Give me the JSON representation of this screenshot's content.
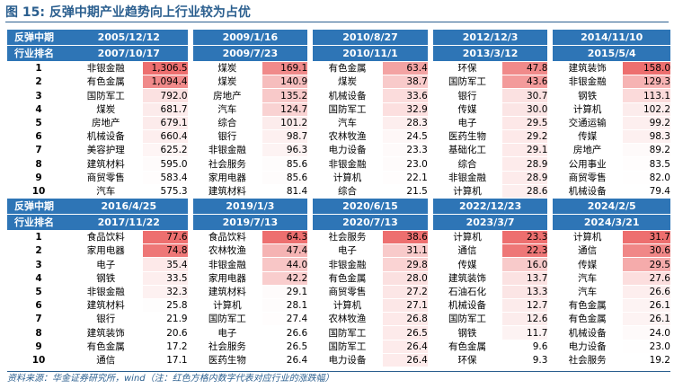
{
  "figure": {
    "label": "图 15:",
    "title": "反弹中期产业趋势向上行业较为占优"
  },
  "source": "资料来源：华金证券研究所，wind（注：红色方格内数字代表对应行业的涨跌幅）",
  "tables": [
    {
      "header": {
        "row1_label": "反弹中期",
        "row2_label": "行业排名",
        "periods": [
          {
            "start": "2005/12/12",
            "end": "2007/10/17"
          },
          {
            "start": "2009/1/16",
            "end": "2009/7/23"
          },
          {
            "start": "2010/8/27",
            "end": "2010/11/1"
          },
          {
            "start": "2012/12/3",
            "end": "2013/3/12"
          },
          {
            "start": "2014/11/10",
            "end": "2015/5/4"
          }
        ]
      },
      "rows": [
        {
          "rank": "1",
          "cells": [
            {
              "name": "非银金融",
              "value": "1,306.5",
              "color": "#ed6f6f"
            },
            {
              "name": "煤炭",
              "value": "169.1",
              "color": "#f08a8a"
            },
            {
              "name": "有色金属",
              "value": "63.4",
              "color": "#f3a3a3"
            },
            {
              "name": "环保",
              "value": "47.8",
              "color": "#f08a8a"
            },
            {
              "name": "建筑装饰",
              "value": "158.0",
              "color": "#ed6f6f"
            }
          ]
        },
        {
          "rank": "2",
          "cells": [
            {
              "name": "有色金属",
              "value": "1,094.4",
              "color": "#f08a8a"
            },
            {
              "name": "煤炭",
              "value": "140.9",
              "color": "#f6bdbd"
            },
            {
              "name": "煤炭",
              "value": "38.7",
              "color": "#f8caca"
            },
            {
              "name": "国防军工",
              "value": "43.6",
              "color": "#f39b9b"
            },
            {
              "name": "非银金融",
              "value": "129.3",
              "color": "#f6b3b3"
            }
          ]
        },
        {
          "rank": "3",
          "cells": [
            {
              "name": "国防军工",
              "value": "792.0",
              "color": "#fbe1e1"
            },
            {
              "name": "房地产",
              "value": "135.2",
              "color": "#f8c9c9"
            },
            {
              "name": "机械设备",
              "value": "33.6",
              "color": "#fbdcdc"
            },
            {
              "name": "银行",
              "value": "30.7",
              "color": "#fbe1e1"
            },
            {
              "name": "钢铁",
              "value": "113.1",
              "color": "#fbdada"
            }
          ]
        },
        {
          "rank": "4",
          "cells": [
            {
              "name": "煤炭",
              "value": "681.7",
              "color": "#fcebeb"
            },
            {
              "name": "汽车",
              "value": "124.7",
              "color": "#f9d2d2"
            },
            {
              "name": "国防军工",
              "value": "32.9",
              "color": "#fcdfdf"
            },
            {
              "name": "传媒",
              "value": "30.0",
              "color": "#fbe5e5"
            },
            {
              "name": "计算机",
              "value": "102.2",
              "color": "#fcecec"
            }
          ]
        },
        {
          "rank": "5",
          "cells": [
            {
              "name": "房地产",
              "value": "679.1",
              "color": "#fcebeb"
            },
            {
              "name": "综合",
              "value": "101.2",
              "color": "#fcecec"
            },
            {
              "name": "汽车",
              "value": "28.3",
              "color": "#fdeeee"
            },
            {
              "name": "电子",
              "value": "29.5",
              "color": "#fde8e8"
            },
            {
              "name": "交通运输",
              "value": "99.2",
              "color": "#fdefef"
            }
          ]
        },
        {
          "rank": "6",
          "cells": [
            {
              "name": "机械设备",
              "value": "660.4",
              "color": "#fdeeee"
            },
            {
              "name": "银行",
              "value": "98.7",
              "color": "#fdf0f0"
            },
            {
              "name": "农林牧渔",
              "value": "24.5",
              "color": "#fef7f7"
            },
            {
              "name": "医药生物",
              "value": "29.2",
              "color": "#fde9e9"
            },
            {
              "name": "传媒",
              "value": "98.3",
              "color": "#fdf0f0"
            }
          ]
        },
        {
          "rank": "7",
          "cells": [
            {
              "name": "美容护理",
              "value": "625.2",
              "color": "#fef5f5"
            },
            {
              "name": "非银金融",
              "value": "96.3",
              "color": "#fdf3f3"
            },
            {
              "name": "电力设备",
              "value": "23.3",
              "color": "#fefafa"
            },
            {
              "name": "基础化工",
              "value": "29.1",
              "color": "#fdeaea"
            },
            {
              "name": "房地产",
              "value": "89.2",
              "color": "#fefafa"
            }
          ]
        },
        {
          "rank": "8",
          "cells": [
            {
              "name": "建筑材料",
              "value": "595.0",
              "color": "#fefbfb"
            },
            {
              "name": "社会服务",
              "value": "85.6",
              "color": "#fefcfc"
            },
            {
              "name": "非银金融",
              "value": "23.0",
              "color": "#fefbfb"
            },
            {
              "name": "综合",
              "value": "28.9",
              "color": "#fdebeb"
            },
            {
              "name": "公用事业",
              "value": "83.5",
              "color": "#fffdfd"
            }
          ]
        },
        {
          "rank": "9",
          "cells": [
            {
              "name": "商贸零售",
              "value": "583.4",
              "color": "#fffdfd"
            },
            {
              "name": "家用电器",
              "value": "85.6",
              "color": "#fefcfc"
            },
            {
              "name": "计算机",
              "value": "22.1",
              "color": "#fffdfd"
            },
            {
              "name": "非银金融",
              "value": "28.9",
              "color": "#fdebeb"
            },
            {
              "name": "商贸零售",
              "value": "82.0",
              "color": "#fffefe"
            }
          ]
        },
        {
          "rank": "10",
          "cells": [
            {
              "name": "汽车",
              "value": "575.3",
              "color": "#ffffff"
            },
            {
              "name": "建筑材料",
              "value": "81.4",
              "color": "#ffffff"
            },
            {
              "name": "综合",
              "value": "21.5",
              "color": "#ffffff"
            },
            {
              "name": "计算机",
              "value": "28.6",
              "color": "#fdeeee"
            },
            {
              "name": "机械设备",
              "value": "79.4",
              "color": "#ffffff"
            }
          ]
        }
      ]
    },
    {
      "header": {
        "row1_label": "反弹中期",
        "row2_label": "行业排名",
        "periods": [
          {
            "start": "2016/4/25",
            "end": "2017/11/22"
          },
          {
            "start": "2019/1/3",
            "end": "2019/7/13"
          },
          {
            "start": "2020/6/15",
            "end": "2020/7/13"
          },
          {
            "start": "2022/12/23",
            "end": "2023/3/7"
          },
          {
            "start": "2024/2/5",
            "end": "2024/3/21"
          }
        ]
      },
      "rows": [
        {
          "rank": "1",
          "cells": [
            {
              "name": "食品饮料",
              "value": "77.6",
              "color": "#ed6f6f"
            },
            {
              "name": "食品饮料",
              "value": "64.3",
              "color": "#ed6f6f"
            },
            {
              "name": "社会服务",
              "value": "38.6",
              "color": "#ed6f6f"
            },
            {
              "name": "计算机",
              "value": "23.3",
              "color": "#ed6f6f"
            },
            {
              "name": "计算机",
              "value": "31.7",
              "color": "#ed6f6f"
            }
          ]
        },
        {
          "rank": "2",
          "cells": [
            {
              "name": "家用电器",
              "value": "74.8",
              "color": "#ee7777"
            },
            {
              "name": "农林牧渔",
              "value": "47.4",
              "color": "#f5b3b3"
            },
            {
              "name": "电子",
              "value": "31.1",
              "color": "#f8caca"
            },
            {
              "name": "通信",
              "value": "22.3",
              "color": "#ee7777"
            },
            {
              "name": "通信",
              "value": "30.6",
              "color": "#f08787"
            }
          ]
        },
        {
          "rank": "3",
          "cells": [
            {
              "name": "电子",
              "value": "35.4",
              "color": "#fde9e9"
            },
            {
              "name": "非银金融",
              "value": "44.0",
              "color": "#f8c6c6"
            },
            {
              "name": "非银金融",
              "value": "29.8",
              "color": "#fad3d3"
            },
            {
              "name": "传媒",
              "value": "16.0",
              "color": "#f8caca"
            },
            {
              "name": "传媒",
              "value": "29.5",
              "color": "#f5abab"
            }
          ]
        },
        {
          "rank": "4",
          "cells": [
            {
              "name": "钢铁",
              "value": "33.5",
              "color": "#fdeeee"
            },
            {
              "name": "家用电器",
              "value": "42.2",
              "color": "#f9cdcd"
            },
            {
              "name": "有色金属",
              "value": "28.0",
              "color": "#fbe0e0"
            },
            {
              "name": "建筑装饰",
              "value": "13.7",
              "color": "#fbe2e2"
            },
            {
              "name": "汽车",
              "value": "27.6",
              "color": "#fcdede"
            }
          ]
        },
        {
          "rank": "5",
          "cells": [
            {
              "name": "非银金融",
              "value": "32.3",
              "color": "#fdf1f1"
            },
            {
              "name": "建筑材料",
              "value": "29.1",
              "color": "#fefbfb"
            },
            {
              "name": "商贸零售",
              "value": "27.2",
              "color": "#fce6e6"
            },
            {
              "name": "石油石化",
              "value": "13.3",
              "color": "#fbe5e5"
            },
            {
              "name": "汽车",
              "value": "26.6",
              "color": "#fdeeee"
            }
          ]
        },
        {
          "rank": "6",
          "cells": [
            {
              "name": "建筑材料",
              "value": "25.8",
              "color": "#fefdfd"
            },
            {
              "name": "计算机",
              "value": "28.1",
              "color": "#fefcfc"
            },
            {
              "name": "计算机",
              "value": "27.1",
              "color": "#fce7e7"
            },
            {
              "name": "机械设备",
              "value": "12.7",
              "color": "#fcebeb"
            },
            {
              "name": "有色金属",
              "value": "26.1",
              "color": "#fdf3f3"
            }
          ]
        },
        {
          "rank": "7",
          "cells": [
            {
              "name": "银行",
              "value": "21.9",
              "color": "#ffffff"
            },
            {
              "name": "国防军工",
              "value": "27.4",
              "color": "#fffdfd"
            },
            {
              "name": "农林牧渔",
              "value": "26.8",
              "color": "#fde9e9"
            },
            {
              "name": "国防军工",
              "value": "12.6",
              "color": "#fcecec"
            },
            {
              "name": "有色金属",
              "value": "26.1",
              "color": "#fdf3f3"
            }
          ]
        },
        {
          "rank": "8",
          "cells": [
            {
              "name": "建筑装饰",
              "value": "20.6",
              "color": "#ffffff"
            },
            {
              "name": "电子",
              "value": "26.6",
              "color": "#ffffff"
            },
            {
              "name": "国防军工",
              "value": "26.5",
              "color": "#fdeaea"
            },
            {
              "name": "钢铁",
              "value": "11.7",
              "color": "#fdf3f3"
            },
            {
              "name": "机械设备",
              "value": "24.0",
              "color": "#fefafa"
            }
          ]
        },
        {
          "rank": "9",
          "cells": [
            {
              "name": "有色金属",
              "value": "17.2",
              "color": "#ffffff"
            },
            {
              "name": "社会服务",
              "value": "26.5",
              "color": "#ffffff"
            },
            {
              "name": "国防军工",
              "value": "26.4",
              "color": "#fdebeb"
            },
            {
              "name": "有色金属",
              "value": "9.6",
              "color": "#ffffff"
            },
            {
              "name": "电力设备",
              "value": "23.0",
              "color": "#fffefe"
            }
          ]
        },
        {
          "rank": "10",
          "cells": [
            {
              "name": "通信",
              "value": "17.1",
              "color": "#ffffff"
            },
            {
              "name": "医药生物",
              "value": "26.4",
              "color": "#ffffff"
            },
            {
              "name": "电力设备",
              "value": "26.4",
              "color": "#fdebeb"
            },
            {
              "name": "环保",
              "value": "9.3",
              "color": "#ffffff"
            },
            {
              "name": "社会服务",
              "value": "19.2",
              "color": "#ffffff"
            }
          ]
        }
      ]
    }
  ]
}
